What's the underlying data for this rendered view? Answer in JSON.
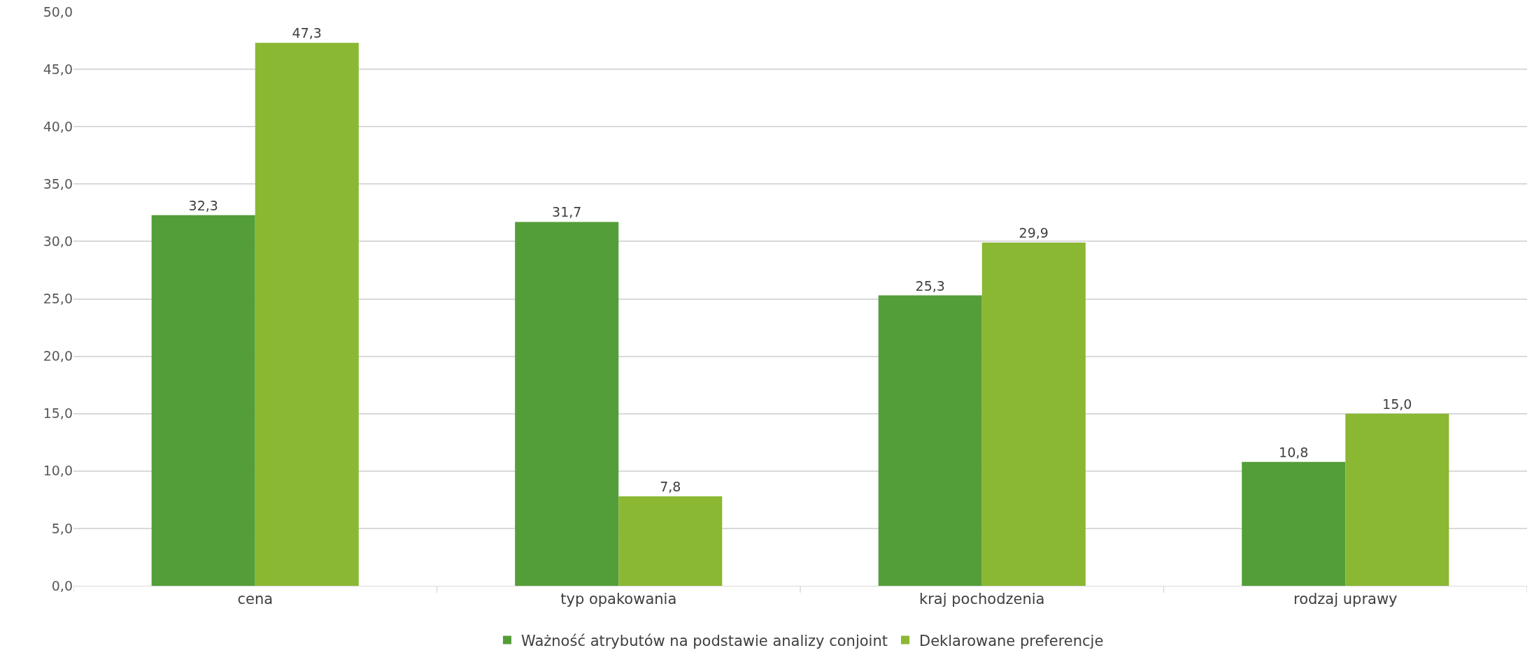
{
  "chart_data": {
    "type": "bar",
    "categories": [
      "cena",
      "typ opakowania",
      "kraj pochodzenia",
      "rodzaj uprawy"
    ],
    "series": [
      {
        "name": "Ważność atrybutów na podstawie analizy conjoint",
        "color": "#549e39",
        "values": [
          32.3,
          31.7,
          25.3,
          10.8
        ],
        "value_labels": [
          "32,3",
          "31,7",
          "25,3",
          "10,8"
        ]
      },
      {
        "name": "Deklarowane preferencje",
        "color": "#8ab833",
        "values": [
          47.3,
          7.8,
          29.9,
          15.0
        ],
        "value_labels": [
          "47,3",
          "7,8",
          "29,9",
          "15,0"
        ]
      }
    ],
    "ylim": [
      0,
      50
    ],
    "yticks": [
      {
        "value": 0,
        "label": "0,0"
      },
      {
        "value": 5,
        "label": "5,0"
      },
      {
        "value": 10,
        "label": "10,0"
      },
      {
        "value": 15,
        "label": "15,0"
      },
      {
        "value": 20,
        "label": "20,0"
      },
      {
        "value": 25,
        "label": "25,0"
      },
      {
        "value": 30,
        "label": "30,0"
      },
      {
        "value": 35,
        "label": "35,0"
      },
      {
        "value": 40,
        "label": "40,0"
      },
      {
        "value": 45,
        "label": "45,0"
      },
      {
        "value": 50,
        "label": "50,0"
      }
    ],
    "grid": "y",
    "legend": "bottom"
  }
}
